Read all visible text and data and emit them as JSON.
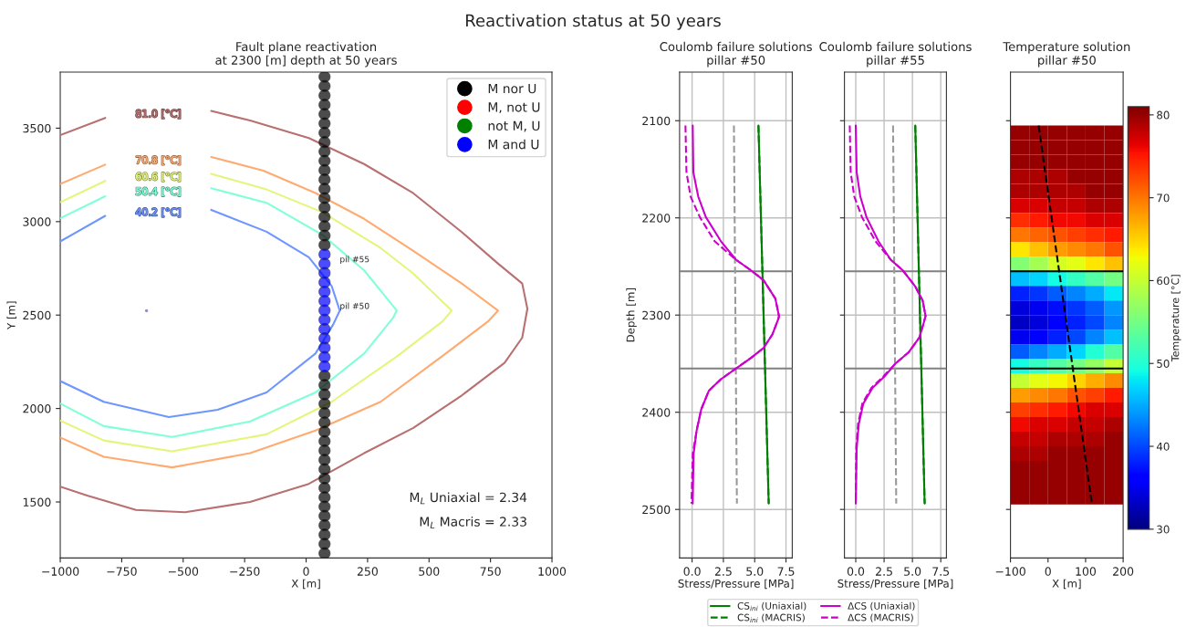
{
  "chart_data": [
    {
      "type": "other",
      "title": "Reactivation status at 50 years"
    },
    {
      "type": "line",
      "title": "Fault plane reactivation\nat 2300 [m] depth at 50 years",
      "xlabel": "X [m]",
      "ylabel": "Y [m]",
      "xlim": [
        -1000,
        1000
      ],
      "ylim": [
        1200,
        3800
      ],
      "xticks": [
        {
          "value": -1000,
          "label": "−1000"
        },
        {
          "value": -750,
          "label": "−750"
        },
        {
          "value": -500,
          "label": "−500"
        },
        {
          "value": -250,
          "label": "−250"
        },
        0,
        250,
        500,
        750,
        1000
      ],
      "yticks": [
        1500,
        2000,
        2500,
        3000,
        3500
      ],
      "legend": "top right",
      "series": [
        {
          "name": "81.0 [°C]",
          "color": "#b87070",
          "x": [
            -1000,
            -817,
            null,
            -386,
            -228,
            11,
            236,
            436,
            633,
            781,
            879,
            900,
            879,
            807,
            633,
            436,
            236,
            11,
            -228,
            -492,
            -692,
            -890,
            -1000
          ],
          "values": [
            3463,
            3555,
            null,
            3592,
            3541,
            3447,
            3308,
            3152,
            2944,
            2775,
            2669,
            2534,
            2379,
            2244,
            2070,
            1896,
            1761,
            1597,
            1500,
            1445,
            1457,
            1534,
            1582
          ]
        },
        {
          "name": "70.8 [°C]",
          "color": "#ffaa70",
          "x": [
            -1000,
            -817,
            null,
            -386,
            -174,
            38,
            236,
            436,
            633,
            781,
            740,
            568,
            303,
            38,
            -228,
            -545,
            -823,
            -1000
          ],
          "values": [
            3201,
            3305,
            null,
            3346,
            3273,
            3153,
            3015,
            2843,
            2669,
            2524,
            2466,
            2294,
            2036,
            1882,
            1761,
            1685,
            1742,
            1845
          ]
        },
        {
          "name": "60.6 [°C]",
          "color": "#e5f57a",
          "x": [
            -1000,
            -817,
            null,
            -386,
            -161,
            65,
            303,
            436,
            592,
            555,
            369,
            104,
            -161,
            -545,
            -823,
            -1000
          ],
          "values": [
            3104,
            3218,
            null,
            3256,
            3172,
            3051,
            2859,
            2722,
            2524,
            2466,
            2278,
            2036,
            1862,
            1771,
            1829,
            1935
          ]
        },
        {
          "name": "50.4 [°C]",
          "color": "#80ffd8",
          "x": [
            -1000,
            -817,
            null,
            -386,
            -161,
            65,
            236,
            369,
            354,
            236,
            38,
            -228,
            -545,
            -823,
            -1000
          ],
          "values": [
            3018,
            3136,
            null,
            3179,
            3101,
            2930,
            2739,
            2524,
            2486,
            2294,
            2086,
            1931,
            1848,
            1906,
            2027
          ]
        },
        {
          "name": "40.2 [°C]",
          "color": "#6e96ff",
          "x": [
            -1000,
            -817,
            null,
            -386,
            -161,
            11,
            104,
            137,
            110,
            38,
            -161,
            -360,
            -558,
            -823,
            -1000
          ],
          "values": [
            2894,
            3031,
            null,
            3063,
            2946,
            2809,
            2655,
            2524,
            2449,
            2294,
            2086,
            1993,
            1954,
            2036,
            2147
          ]
        },
        {
          "type": "scatter",
          "marker": "circle",
          "color": "#6060c0",
          "x": [
            -649
          ],
          "values": [
            2523
          ]
        },
        {
          "type": "scatter",
          "marker": "circle",
          "name": "M nor U",
          "color": "#000000",
          "x": [
            75,
            75,
            75,
            75,
            75,
            75,
            75,
            75,
            75,
            75,
            75,
            75,
            75,
            75,
            75,
            75,
            75,
            75,
            75,
            75,
            75,
            75,
            75,
            75,
            75,
            75,
            75,
            75,
            75,
            75,
            75,
            75,
            75,
            75,
            75,
            75,
            75,
            75,
            75
          ],
          "values": [
            1225,
            1275,
            1325,
            1375,
            1425,
            1475,
            1525,
            1575,
            1625,
            1675,
            1725,
            1775,
            1825,
            1875,
            1925,
            1975,
            2025,
            2075,
            2125,
            2175,
            2875,
            2925,
            2975,
            3025,
            3075,
            3125,
            3175,
            3225,
            3275,
            3325,
            3375,
            3425,
            3475,
            3525,
            3575,
            3625,
            3675,
            3725,
            3775
          ]
        },
        {
          "type": "scatter",
          "marker": "circle",
          "name": "M, not U",
          "color": "#ff0000"
        },
        {
          "type": "scatter",
          "marker": "circle",
          "name": "not M, U",
          "color": "#008000"
        },
        {
          "type": "scatter",
          "marker": "circle",
          "name": "M and U",
          "color": "#0000ff",
          "x": [
            75,
            75,
            75,
            75,
            75,
            75,
            75,
            75,
            75,
            75,
            75,
            75,
            75
          ],
          "values": [
            2225,
            2275,
            2325,
            2375,
            2425,
            2475,
            2525,
            2575,
            2625,
            2675,
            2725,
            2775,
            2825
          ]
        }
      ],
      "annotations": [
        {
          "text": "pil #55",
          "x": 75,
          "y": 2775
        },
        {
          "text": "pil #50",
          "x": 75,
          "y": 2525
        },
        "M$_{L}$ Uniaxial = 2.34",
        "M$_{L}$ Macris = 2.33"
      ]
    },
    {
      "type": "line",
      "title": "Coulomb failure solutions\npillar #50",
      "xlabel": "Stress/Pressure [MPa]",
      "ylabel": "Depth [m]",
      "xlim": [
        -1,
        8
      ],
      "ylim": [
        2550,
        2050
      ],
      "xticks": [
        {
          "value": 0,
          "label": "0.0"
        },
        2.5,
        {
          "value": 5,
          "label": "5.0"
        },
        7.5
      ],
      "yticks": [
        2100,
        2200,
        2300,
        2400,
        2500
      ],
      "grid": true,
      "legend": "bottom",
      "ref_lines": [
        {
          "axis": "y",
          "value": 2255,
          "color": "#808080"
        },
        {
          "axis": "y",
          "value": 2355,
          "color": "#808080"
        }
      ],
      "series": [
        {
          "color": "#999999",
          "line_style": "dashed",
          "x": [
            3.34,
            3.58
          ],
          "values": [
            2105,
            2494
          ]
        },
        {
          "name": "CS$_{ini}$ (Uniaxial)",
          "color": "#008000",
          "line_style": "solid",
          "x": [
            5.3,
            6.12
          ],
          "values": [
            2105,
            2494
          ]
        },
        {
          "name": "CS$_{ini}$ (MACRIS)",
          "color": "#008000",
          "line_style": "dashed",
          "x": [
            5.3,
            6.12
          ],
          "values": [
            2105,
            2494
          ]
        },
        {
          "name": "ΔCS (Uniaxial)",
          "color": "#cc00cc",
          "line_style": "solid",
          "x": [
            0.05,
            0.1,
            0.49,
            1.09,
            2.3,
            3.5,
            4.7,
            5.7,
            6.65,
            6.94,
            6.89,
            6.41,
            5.7,
            4.71,
            3.5,
            2.3,
            1.33,
            0.73,
            0.36,
            0.12,
            0.05
          ],
          "values": [
            2105,
            2153,
            2178,
            2199,
            2224,
            2243,
            2254,
            2264,
            2283,
            2301,
            2304,
            2320,
            2334,
            2344,
            2355,
            2366,
            2378,
            2397,
            2419,
            2443,
            2494
          ]
        },
        {
          "name": "ΔCS (MACRIS)",
          "color": "#cc00cc",
          "line_style": "dashed",
          "x": [
            -0.53,
            -0.45,
            -0.12,
            0.61,
            1.8,
            3.5,
            4.7,
            5.7,
            6.65,
            6.94,
            6.89,
            6.41,
            5.7,
            4.71,
            3.5,
            2.3,
            1.33,
            0.73,
            0.36,
            0.05,
            -0.05
          ],
          "values": [
            2105,
            2153,
            2178,
            2199,
            2224,
            2243,
            2254,
            2264,
            2283,
            2301,
            2304,
            2320,
            2334,
            2344,
            2355,
            2366,
            2378,
            2397,
            2419,
            2443,
            2494
          ]
        }
      ]
    },
    {
      "type": "line",
      "title": "Coulomb failure solutions\npillar #55",
      "xlabel": "Stress/Pressure [MPa]",
      "xlim": [
        -1,
        8
      ],
      "ylim": [
        2550,
        2050
      ],
      "xticks": [
        {
          "value": 0,
          "label": "0.0"
        },
        2.5,
        {
          "value": 5,
          "label": "5.0"
        },
        7.5
      ],
      "yticks": [
        2100,
        2200,
        2300,
        2400,
        2500
      ],
      "grid": true,
      "tick_labels": "x",
      "ref_lines": [
        {
          "axis": "y",
          "value": 2255,
          "color": "#808080"
        },
        {
          "axis": "y",
          "value": 2355,
          "color": "#808080"
        }
      ],
      "series": [
        {
          "color": "#999999",
          "line_style": "dashed",
          "x": [
            3.29,
            3.57
          ],
          "values": [
            2105,
            2494
          ]
        },
        {
          "color": "#008000",
          "line_style": "solid",
          "x": [
            5.25,
            6.08
          ],
          "values": [
            2105,
            2494
          ]
        },
        {
          "color": "#008000",
          "line_style": "dashed",
          "x": [
            5.25,
            6.08
          ],
          "values": [
            2105,
            2494
          ]
        },
        {
          "color": "#cc00cc",
          "line_style": "solid",
          "x": [
            0.0,
            0.08,
            0.4,
            0.94,
            2.0,
            3.08,
            4.15,
            5.22,
            5.9,
            6.16,
            6.02,
            5.62,
            4.69,
            3.49,
            2.55,
            1.48,
            0.67,
            0.27,
            0.08,
            0.0
          ],
          "values": [
            2105,
            2153,
            2178,
            2199,
            2224,
            2243,
            2254,
            2270,
            2285,
            2301,
            2307,
            2323,
            2338,
            2350,
            2363,
            2375,
            2391,
            2412,
            2437,
            2494
          ]
        },
        {
          "color": "#cc00cc",
          "line_style": "dashed",
          "x": [
            -0.53,
            -0.45,
            -0.13,
            0.54,
            1.74,
            3.08,
            4.15,
            5.22,
            5.9,
            6.16,
            6.02,
            5.62,
            4.69,
            3.49,
            2.45,
            1.38,
            0.58,
            0.2,
            0.04,
            0.0
          ],
          "values": [
            2105,
            2153,
            2178,
            2199,
            2224,
            2243,
            2254,
            2270,
            2285,
            2301,
            2307,
            2323,
            2338,
            2350,
            2363,
            2375,
            2391,
            2412,
            2437,
            2494
          ]
        }
      ]
    },
    {
      "type": "scatter",
      "title": "Temperature solution\npillar #50",
      "xlabel": "X [m]",
      "clabel": "Temperature [°C]",
      "clim": [
        30,
        81
      ],
      "cticks": [
        30,
        40,
        50,
        60,
        70,
        80
      ],
      "xlim": [
        -100,
        200
      ],
      "ylim": [
        2550,
        2050
      ],
      "xticks": [
        {
          "value": -100,
          "label": "−100"
        },
        0,
        100,
        200
      ],
      "yticks": [
        2100,
        2200,
        2300,
        2400,
        2500
      ],
      "tick_labels": "x",
      "ref_lines": [
        {
          "axis": "y",
          "value": 2255,
          "color": "#000000"
        },
        {
          "axis": "y",
          "value": 2355,
          "color": "#000000"
        }
      ],
      "series": [
        {
          "marker": "square",
          "x": [
            -75,
            -25,
            25,
            75,
            125,
            175,
            -75,
            -25,
            25,
            75,
            125,
            175,
            -75,
            -25,
            25,
            75,
            125,
            175,
            75,
            125,
            175,
            125,
            175,
            175,
            25,
            75,
            125,
            175,
            -75,
            -25,
            25,
            75,
            125,
            175,
            -75,
            -25,
            25,
            75,
            125,
            175,
            -75,
            -25,
            25,
            75,
            125,
            175
          ],
          "values": [
            2112.5,
            2112.5,
            2112.5,
            2112.5,
            2112.5,
            2112.5,
            2127.5,
            2127.5,
            2127.5,
            2127.5,
            2127.5,
            2127.5,
            2142.5,
            2142.5,
            2142.5,
            2142.5,
            2142.5,
            2142.5,
            2157.5,
            2157.5,
            2157.5,
            2172.5,
            2172.5,
            2427.5,
            2442.5,
            2442.5,
            2442.5,
            2442.5,
            2457.5,
            2457.5,
            2457.5,
            2457.5,
            2457.5,
            2457.5,
            2472.5,
            2472.5,
            2472.5,
            2472.5,
            2472.5,
            2472.5,
            2487.5,
            2487.5,
            2487.5,
            2487.5,
            2487.5,
            2487.5
          ],
          "cvalues": [
            80,
            80,
            80,
            80,
            80,
            80,
            80,
            80,
            80,
            80,
            80,
            80,
            80,
            80,
            80,
            80,
            80,
            80,
            80,
            80,
            80,
            80,
            80,
            80,
            80,
            80,
            80,
            80,
            80,
            80,
            80,
            80,
            80,
            80,
            80,
            80,
            80,
            80,
            80,
            80,
            80,
            80,
            80,
            80,
            80,
            80
          ]
        },
        {
          "marker": "square",
          "x": [
            -75,
            -25,
            25,
            -75,
            -25,
            25,
            75,
            125,
            175,
            175,
            25,
            75,
            125,
            -75,
            -25
          ],
          "values": [
            2157.5,
            2157.5,
            2157.5,
            2172.5,
            2172.5,
            2172.5,
            2172.5,
            2187.5,
            2187.5,
            2412.5,
            2427.5,
            2427.5,
            2427.5,
            2442.5,
            2442.5
          ],
          "cvalues": [
            79,
            79,
            79,
            79,
            79,
            79,
            79,
            79,
            79,
            79,
            79,
            79,
            79,
            79,
            79
          ]
        },
        {
          "marker": "square",
          "x": [
            25,
            75,
            75,
            125,
            -75,
            -25
          ],
          "values": [
            2187.5,
            2187.5,
            2412.5,
            2412.5,
            2427.5,
            2427.5
          ],
          "cvalues": [
            78,
            78,
            78,
            78,
            78,
            78
          ]
        },
        {
          "marker": "square",
          "x": [
            -75,
            -25,
            125,
            175,
            125,
            175,
            -25,
            25
          ],
          "values": [
            2187.5,
            2187.5,
            2202.5,
            2202.5,
            2397.5,
            2397.5,
            2412.5,
            2412.5
          ],
          "cvalues": [
            77,
            77,
            77,
            77,
            77,
            77,
            77,
            77
          ]
        },
        {
          "marker": "square",
          "x": [
            25,
            75,
            75,
            -75
          ],
          "values": [
            2202.5,
            2202.5,
            2397.5,
            2412.5
          ],
          "cvalues": [
            76,
            76,
            76,
            76
          ]
        },
        {
          "marker": "square",
          "x": [
            -25,
            175,
            175,
            25
          ],
          "values": [
            2202.5,
            2217.5,
            2382.5,
            2397.5
          ],
          "cvalues": [
            75,
            75,
            75,
            75
          ]
        },
        {
          "marker": "square",
          "x": [
            -75,
            125,
            -25
          ],
          "values": [
            2202.5,
            2217.5,
            2397.5
          ],
          "cvalues": [
            74,
            74,
            74
          ]
        },
        {
          "marker": "square",
          "x": [
            75,
            125,
            -75
          ],
          "values": [
            2217.5,
            2382.5,
            2397.5
          ],
          "cvalues": [
            73,
            73,
            73
          ]
        },
        {
          "marker": "square",
          "x": [
            25,
            175,
            75
          ],
          "values": [
            2217.5,
            2232.5,
            2382.5
          ],
          "cvalues": [
            72,
            72,
            72
          ]
        },
        {
          "marker": "square",
          "x": [
            -25
          ],
          "values": [
            2217.5
          ],
          "cvalues": [
            71
          ]
        },
        {
          "marker": "square",
          "x": [
            -75,
            125,
            25
          ],
          "values": [
            2217.5,
            2232.5,
            2382.5
          ],
          "cvalues": [
            70,
            70,
            70
          ]
        },
        {
          "marker": "square",
          "x": [
            75,
            175,
            -25
          ],
          "values": [
            2232.5,
            2367.5,
            2382.5
          ],
          "cvalues": [
            69,
            69,
            69
          ]
        },
        {
          "marker": "square",
          "x": [
            25,
            -75
          ],
          "values": [
            2232.5,
            2382.5
          ],
          "cvalues": [
            68,
            68
          ]
        },
        {
          "marker": "square",
          "x": [
            125
          ],
          "values": [
            2367.5
          ],
          "cvalues": [
            67
          ]
        },
        {
          "marker": "square",
          "x": [
            -25,
            175
          ],
          "values": [
            2232.5,
            2247.5
          ],
          "cvalues": [
            66,
            66
          ]
        },
        {
          "marker": "square",
          "x": [
            75
          ],
          "values": [
            2367.5
          ],
          "cvalues": [
            65
          ]
        },
        {
          "marker": "square",
          "x": [
            -75,
            125
          ],
          "values": [
            2232.5,
            2247.5
          ],
          "cvalues": [
            64,
            64
          ]
        },
        {
          "marker": "square",
          "x": [
            25
          ],
          "values": [
            2367.5
          ],
          "cvalues": [
            63
          ]
        },
        {
          "marker": "square",
          "x": [
            75,
            -25
          ],
          "values": [
            2247.5,
            2367.5
          ],
          "cvalues": [
            62,
            62
          ]
        },
        {
          "marker": "square",
          "x": [
            25
          ],
          "values": [
            2247.5
          ],
          "cvalues": [
            61
          ]
        },
        {
          "marker": "square",
          "x": [
            175,
            -75
          ],
          "values": [
            2352.5,
            2367.5
          ],
          "cvalues": [
            60,
            60
          ]
        },
        {
          "marker": "square",
          "x": [
            -25
          ],
          "values": [
            2247.5
          ],
          "cvalues": [
            58
          ]
        },
        {
          "marker": "square",
          "x": [
            125
          ],
          "values": [
            2352.5
          ],
          "cvalues": [
            57
          ]
        },
        {
          "marker": "square",
          "x": [
            -75
          ],
          "values": [
            2247.5
          ],
          "cvalues": [
            56
          ]
        },
        {
          "marker": "square",
          "x": [
            175,
            75
          ],
          "values": [
            2262.5,
            2352.5
          ],
          "cvalues": [
            55,
            55
          ]
        },
        {
          "marker": "square",
          "x": [
            125,
            175,
            25
          ],
          "values": [
            2262.5,
            2337.5,
            2352.5
          ],
          "cvalues": [
            53,
            53,
            53
          ]
        },
        {
          "marker": "square",
          "x": [
            75,
            -25
          ],
          "values": [
            2262.5,
            2352.5
          ],
          "cvalues": [
            51,
            51
          ]
        },
        {
          "marker": "square",
          "x": [
            125
          ],
          "values": [
            2337.5
          ],
          "cvalues": [
            50
          ]
        },
        {
          "marker": "square",
          "x": [
            25,
            -75
          ],
          "values": [
            2262.5,
            2352.5
          ],
          "cvalues": [
            49,
            49
          ]
        },
        {
          "marker": "square",
          "x": [
            175
          ],
          "values": [
            2277.5
          ],
          "cvalues": [
            48
          ]
        },
        {
          "marker": "square",
          "x": [
            -25,
            75
          ],
          "values": [
            2262.5,
            2337.5
          ],
          "cvalues": [
            47,
            47
          ]
        },
        {
          "marker": "square",
          "x": [
            -75,
            175
          ],
          "values": [
            2262.5,
            2322.5
          ],
          "cvalues": [
            46,
            46
          ]
        },
        {
          "marker": "square",
          "x": [
            125,
            25
          ],
          "values": [
            2277.5,
            2337.5
          ],
          "cvalues": [
            45,
            45
          ]
        },
        {
          "marker": "square",
          "x": [
            175
          ],
          "values": [
            2292.5
          ],
          "cvalues": [
            44
          ]
        },
        {
          "marker": "square",
          "x": [
            75,
            175,
            125,
            -25
          ],
          "values": [
            2277.5,
            2307.5,
            2322.5,
            2337.5
          ],
          "cvalues": [
            43,
            43,
            43,
            43
          ]
        },
        {
          "marker": "square",
          "x": [
            25,
            125,
            -75
          ],
          "values": [
            2277.5,
            2292.5,
            2337.5
          ],
          "cvalues": [
            41,
            41,
            41
          ]
        },
        {
          "marker": "square",
          "x": [
            125,
            75
          ],
          "values": [
            2307.5,
            2322.5
          ],
          "cvalues": [
            40,
            40
          ]
        },
        {
          "marker": "square",
          "x": [
            -25,
            75
          ],
          "values": [
            2277.5,
            2292.5
          ],
          "cvalues": [
            39,
            39
          ]
        },
        {
          "marker": "square",
          "x": [
            -75,
            75,
            25
          ],
          "values": [
            2277.5,
            2307.5,
            2322.5
          ],
          "cvalues": [
            38,
            38,
            38
          ]
        },
        {
          "marker": "square",
          "x": [
            25
          ],
          "values": [
            2292.5
          ],
          "cvalues": [
            37
          ]
        },
        {
          "marker": "square",
          "x": [
            25,
            -25
          ],
          "values": [
            2307.5,
            2322.5
          ],
          "cvalues": [
            36,
            36
          ]
        },
        {
          "marker": "square",
          "x": [
            -25,
            -75
          ],
          "values": [
            2292.5,
            2322.5
          ],
          "cvalues": [
            35,
            35
          ]
        },
        {
          "marker": "square",
          "x": [
            -75,
            -25
          ],
          "values": [
            2292.5,
            2307.5
          ],
          "cvalues": [
            34,
            34
          ]
        },
        {
          "marker": "square",
          "x": [
            -75
          ],
          "values": [
            2307.5
          ],
          "cvalues": [
            33
          ]
        },
        {
          "type": "line",
          "color": "#000000",
          "line_style": "dashed",
          "x": [
            -25,
            117
          ],
          "values": [
            2105,
            2495
          ]
        }
      ]
    }
  ]
}
